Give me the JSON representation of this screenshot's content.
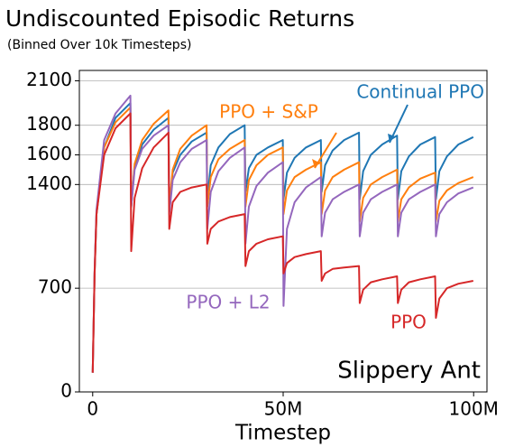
{
  "chart_data": {
    "type": "line",
    "title": "Undiscounted Episodic Returns",
    "subtitle": "(Binned Over 10k Timesteps)",
    "x_label": "Timestep",
    "annotation": "Slippery Ant",
    "xlim": [
      -3.5,
      103.5
    ],
    "xticks": [
      0,
      {
        "value": 50,
        "label": "50M"
      },
      {
        "value": 100,
        "label": "100M"
      }
    ],
    "ylim": [
      0,
      2170
    ],
    "yticks": [
      0,
      700,
      1400,
      1600,
      1800,
      2100
    ],
    "grid": true,
    "x": [
      0,
      0.5,
      1,
      3,
      6,
      9.9,
      10.1,
      11,
      13,
      16,
      19.9,
      20.1,
      21,
      23,
      26,
      29.9,
      30.1,
      31,
      33,
      36,
      39.9,
      40.1,
      41,
      43,
      46,
      49.9,
      50.1,
      51,
      53,
      56,
      59.9,
      60.1,
      61,
      63,
      66,
      69.9,
      70.1,
      71,
      73,
      76,
      79.9,
      80.1,
      81,
      83,
      86,
      89.9,
      90.1,
      91,
      93,
      96,
      99.9
    ],
    "series": [
      {
        "name": "Continual PPO",
        "color": "#1f77b4",
        "values": [
          130,
          800,
          1200,
          1650,
          1850,
          1950,
          1250,
          1520,
          1670,
          1770,
          1850,
          1250,
          1480,
          1600,
          1690,
          1750,
          1300,
          1530,
          1650,
          1740,
          1800,
          1350,
          1510,
          1600,
          1650,
          1700,
          1300,
          1480,
          1580,
          1650,
          1700,
          1350,
          1530,
          1630,
          1700,
          1750,
          1300,
          1490,
          1600,
          1670,
          1730,
          1300,
          1490,
          1590,
          1670,
          1720,
          1300,
          1490,
          1590,
          1670,
          1720
        ]
      },
      {
        "name": "PPO + S&P",
        "color": "#ff7f0e",
        "values": [
          130,
          800,
          1200,
          1650,
          1820,
          1920,
          1250,
          1540,
          1700,
          1810,
          1900,
          1250,
          1500,
          1640,
          1730,
          1800,
          1250,
          1450,
          1570,
          1640,
          1700,
          1250,
          1430,
          1530,
          1600,
          1650,
          1200,
          1360,
          1450,
          1500,
          1550,
          1200,
          1360,
          1450,
          1500,
          1550,
          1150,
          1310,
          1400,
          1450,
          1500,
          1150,
          1300,
          1380,
          1440,
          1480,
          1150,
          1290,
          1360,
          1410,
          1450
        ]
      },
      {
        "name": "PPO + L2",
        "color": "#9467bd",
        "values": [
          130,
          820,
          1230,
          1700,
          1880,
          2000,
          1250,
          1500,
          1640,
          1730,
          1800,
          1200,
          1430,
          1550,
          1640,
          1700,
          1100,
          1350,
          1490,
          1580,
          1650,
          1000,
          1250,
          1390,
          1480,
          1550,
          580,
          1100,
          1280,
          1380,
          1450,
          1050,
          1210,
          1300,
          1350,
          1400,
          1050,
          1210,
          1300,
          1350,
          1400,
          1050,
          1210,
          1300,
          1350,
          1400,
          1050,
          1200,
          1280,
          1340,
          1380
        ]
      },
      {
        "name": "PPO",
        "color": "#d62728",
        "values": [
          130,
          800,
          1200,
          1600,
          1780,
          1880,
          950,
          1310,
          1510,
          1650,
          1750,
          1100,
          1280,
          1350,
          1380,
          1400,
          1000,
          1100,
          1150,
          1180,
          1200,
          850,
          950,
          1000,
          1030,
          1050,
          800,
          870,
          910,
          930,
          950,
          750,
          800,
          830,
          840,
          850,
          600,
          690,
          740,
          760,
          780,
          600,
          690,
          740,
          760,
          780,
          500,
          630,
          700,
          730,
          750
        ]
      }
    ]
  }
}
